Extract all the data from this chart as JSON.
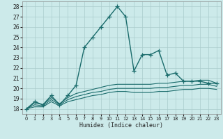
{
  "title": "",
  "xlabel": "Humidex (Indice chaleur)",
  "background_color": "#cceaea",
  "grid_color": "#aacccc",
  "line_color": "#1a6b6b",
  "xlim": [
    -0.5,
    23.5
  ],
  "ylim": [
    17.5,
    28.5
  ],
  "xticks": [
    0,
    1,
    2,
    3,
    4,
    5,
    6,
    7,
    8,
    9,
    10,
    11,
    12,
    13,
    14,
    15,
    16,
    17,
    18,
    19,
    20,
    21,
    22,
    23
  ],
  "yticks": [
    18,
    19,
    20,
    21,
    22,
    23,
    24,
    25,
    26,
    27,
    28
  ],
  "series": [
    {
      "x": [
        0,
        1,
        2,
        3,
        4,
        5,
        6,
        7,
        8,
        9,
        10,
        11,
        12,
        13,
        14,
        15,
        16,
        17,
        18,
        19,
        20,
        21,
        22,
        23
      ],
      "y": [
        18.0,
        18.7,
        18.4,
        19.3,
        18.4,
        19.3,
        20.3,
        24.0,
        25.0,
        26.0,
        27.0,
        28.0,
        27.0,
        21.7,
        23.3,
        23.3,
        23.7,
        21.3,
        21.5,
        20.7,
        20.7,
        20.7,
        20.5,
        20.5
      ],
      "marker": "+",
      "markersize": 4,
      "linewidth": 1.0
    },
    {
      "x": [
        0,
        1,
        2,
        3,
        4,
        5,
        6,
        7,
        8,
        9,
        10,
        11,
        12,
        13,
        14,
        15,
        16,
        17,
        18,
        19,
        20,
        21,
        22,
        23
      ],
      "y": [
        18.0,
        18.6,
        18.4,
        19.1,
        18.5,
        19.1,
        19.5,
        19.7,
        19.9,
        20.1,
        20.3,
        20.4,
        20.4,
        20.4,
        20.4,
        20.4,
        20.5,
        20.5,
        20.6,
        20.7,
        20.7,
        20.8,
        20.8,
        20.5
      ],
      "marker": null,
      "linewidth": 0.8
    },
    {
      "x": [
        0,
        1,
        2,
        3,
        4,
        5,
        6,
        7,
        8,
        9,
        10,
        11,
        12,
        13,
        14,
        15,
        16,
        17,
        18,
        19,
        20,
        21,
        22,
        23
      ],
      "y": [
        18.0,
        18.4,
        18.3,
        18.9,
        18.4,
        18.9,
        19.2,
        19.4,
        19.6,
        19.7,
        19.9,
        20.0,
        20.0,
        20.0,
        20.0,
        20.0,
        20.1,
        20.1,
        20.2,
        20.3,
        20.3,
        20.4,
        20.4,
        20.2
      ],
      "marker": null,
      "linewidth": 0.8
    },
    {
      "x": [
        0,
        1,
        2,
        3,
        4,
        5,
        6,
        7,
        8,
        9,
        10,
        11,
        12,
        13,
        14,
        15,
        16,
        17,
        18,
        19,
        20,
        21,
        22,
        23
      ],
      "y": [
        18.0,
        18.2,
        18.2,
        18.7,
        18.3,
        18.7,
        18.9,
        19.1,
        19.3,
        19.4,
        19.6,
        19.7,
        19.7,
        19.6,
        19.6,
        19.6,
        19.7,
        19.7,
        19.8,
        19.9,
        19.9,
        20.0,
        20.0,
        19.9
      ],
      "marker": null,
      "linewidth": 0.8
    }
  ]
}
